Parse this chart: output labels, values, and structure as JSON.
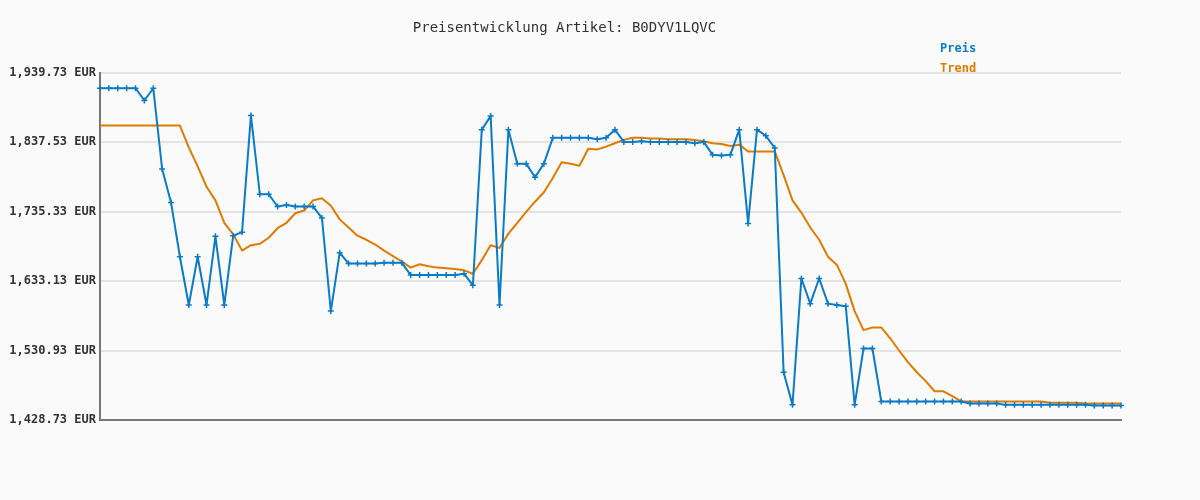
{
  "chart_data": {
    "type": "line",
    "title": "Preisentwicklung Artikel: B0DYV1LQVC",
    "categories": [
      null,
      null,
      null,
      null,
      null,
      null,
      null,
      null,
      null,
      null,
      null,
      null,
      null,
      null,
      null,
      null,
      null,
      null,
      null,
      null,
      null,
      null,
      null,
      null,
      null,
      null,
      null,
      null,
      null,
      null,
      null,
      null,
      null,
      null,
      null,
      null,
      null,
      null,
      null,
      null,
      null,
      null,
      null,
      null,
      null,
      null,
      null,
      null,
      null,
      null,
      null,
      null,
      null,
      null,
      null,
      null,
      null,
      null,
      null,
      null,
      null,
      null,
      null,
      null,
      null,
      null,
      null,
      null,
      null,
      null,
      null,
      null,
      null,
      null,
      null,
      null,
      null,
      null,
      null,
      null,
      null,
      null,
      null,
      null,
      null,
      null,
      null,
      null,
      null,
      null,
      null,
      null,
      null,
      null,
      null,
      null,
      null,
      null,
      null,
      null,
      null,
      null,
      null,
      null,
      null,
      null,
      null,
      null,
      null,
      null,
      null,
      null,
      null,
      null,
      null,
      null
    ],
    "series": [
      {
        "name": "Preis",
        "color": "#0a7bc8",
        "marker": "cross",
        "values": [
          1917,
          1917,
          1917,
          1917,
          1917,
          1899,
          1917,
          1798,
          1749,
          1669,
          1598,
          1669,
          1598,
          1699,
          1598,
          1700,
          1705,
          1877,
          1761,
          1761,
          1743,
          1745,
          1743,
          1743,
          1743,
          1726,
          1589,
          1675,
          1659,
          1659,
          1659,
          1659,
          1660,
          1660,
          1660,
          1642,
          1642,
          1642,
          1642,
          1642,
          1642,
          1644,
          1627,
          1856,
          1876,
          1598,
          1856,
          1806,
          1806,
          1786,
          1806,
          1844,
          1844,
          1844,
          1844,
          1844,
          1842,
          1844,
          1856,
          1838,
          1838,
          1839,
          1838,
          1838,
          1838,
          1838,
          1838,
          1836,
          1838,
          1819,
          1818,
          1819,
          1856,
          1718,
          1856,
          1847,
          1829,
          1499,
          1451,
          1637,
          1600,
          1637,
          1600,
          1598,
          1596,
          1451,
          1534,
          1534,
          1456,
          1456,
          1456,
          1456,
          1456,
          1456,
          1456,
          1456,
          1456,
          1456,
          1453,
          1453,
          1453,
          1453,
          1451,
          1451,
          1451,
          1451,
          1451,
          1451,
          1451,
          1451,
          1451,
          1451,
          1450,
          1450,
          1450,
          1450
        ]
      },
      {
        "name": "Trend",
        "color": "#e07b00",
        "marker": "none",
        "values": [
          1862,
          1862,
          1862,
          1862,
          1862,
          1862,
          1862,
          1862,
          1862,
          1862,
          1830,
          1802,
          1772,
          1752,
          1719,
          1702,
          1678,
          1686,
          1688,
          1697,
          1711,
          1719,
          1733,
          1737,
          1752,
          1755,
          1744,
          1724,
          1712,
          1700,
          1694,
          1687,
          1678,
          1670,
          1662,
          1653,
          1658,
          1655,
          1653,
          1652,
          1651,
          1649,
          1644,
          1664,
          1686,
          1682,
          1703,
          1719,
          1735,
          1750,
          1764,
          1785,
          1808,
          1806,
          1803,
          1828,
          1827,
          1831,
          1836,
          1841,
          1844,
          1844,
          1843,
          1843,
          1842,
          1842,
          1842,
          1841,
          1839,
          1836,
          1835,
          1832,
          1834,
          1824,
          1824,
          1824,
          1824,
          1789,
          1752,
          1734,
          1712,
          1694,
          1669,
          1657,
          1629,
          1589,
          1561,
          1565,
          1565,
          1549,
          1531,
          1514,
          1499,
          1486,
          1471,
          1471,
          1464,
          1456,
          1456,
          1456,
          1456,
          1456,
          1456,
          1456,
          1456,
          1456,
          1456,
          1454,
          1454,
          1454,
          1454,
          1453,
          1453,
          1453,
          1453,
          1453
        ]
      }
    ],
    "ylim": [
      1428.73,
      1939.73
    ],
    "yticks": [
      {
        "value": 1428.73,
        "label": "1,428.73 EUR"
      },
      {
        "value": 1530.93,
        "label": "1,530.93 EUR"
      },
      {
        "value": 1633.13,
        "label": "1,633.13 EUR"
      },
      {
        "value": 1735.33,
        "label": "1,735.33 EUR"
      },
      {
        "value": 1837.53,
        "label": "1,837.53 EUR"
      },
      {
        "value": 1939.73,
        "label": "1,939.73 EUR"
      }
    ],
    "grid": "y",
    "legend": "top right",
    "tick_labels": "y"
  }
}
